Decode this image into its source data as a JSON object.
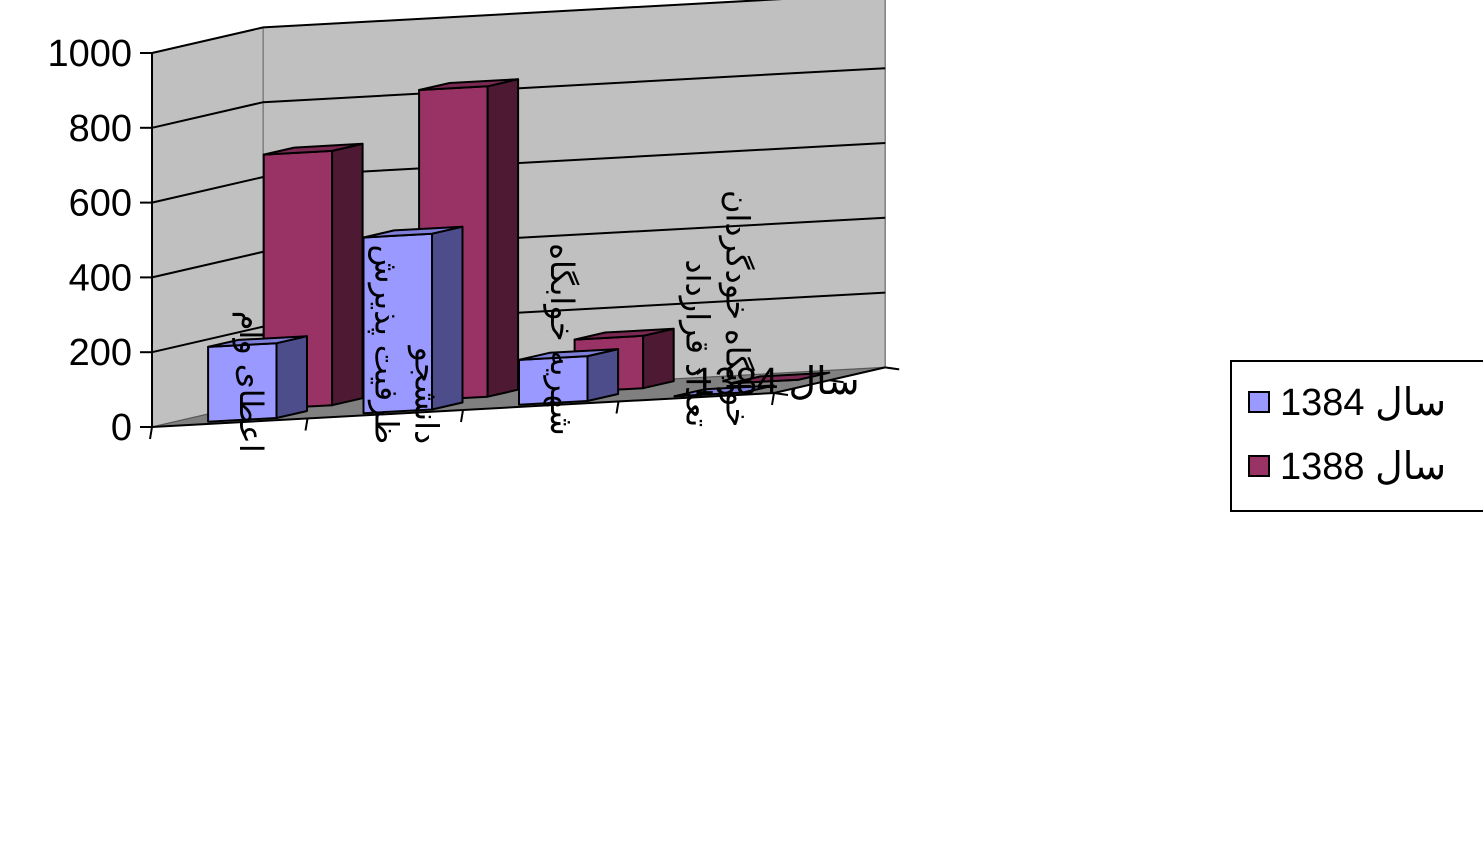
{
  "chart_data": {
    "type": "bar",
    "projection": "3d",
    "categories": [
      "اعطای وام",
      "ظرفیت پذیرش دانشجو",
      "شهریه خوابگاه",
      "تعداد قرارداد خوابگاه خودگردان"
    ],
    "series": [
      {
        "name": "سال 1384",
        "values": [
          200,
          470,
          120,
          0
        ],
        "color": "#9999ff",
        "color_dark": "#4d4d8c",
        "color_top": "#7f7fd9"
      },
      {
        "name": "سال 1388",
        "values": [
          680,
          830,
          140,
          0
        ],
        "color": "#993366",
        "color_dark": "#4d1933",
        "color_top": "#7a2952"
      }
    ],
    "depth_axis_label": "سال 1384",
    "ylim": [
      0,
      1000
    ],
    "yticks": [
      "0",
      "200",
      "400",
      "600",
      "800",
      "1000"
    ],
    "grid": true,
    "legend_position": "right",
    "wall_color": "#c0c0c0",
    "floor_color": "#808080"
  }
}
